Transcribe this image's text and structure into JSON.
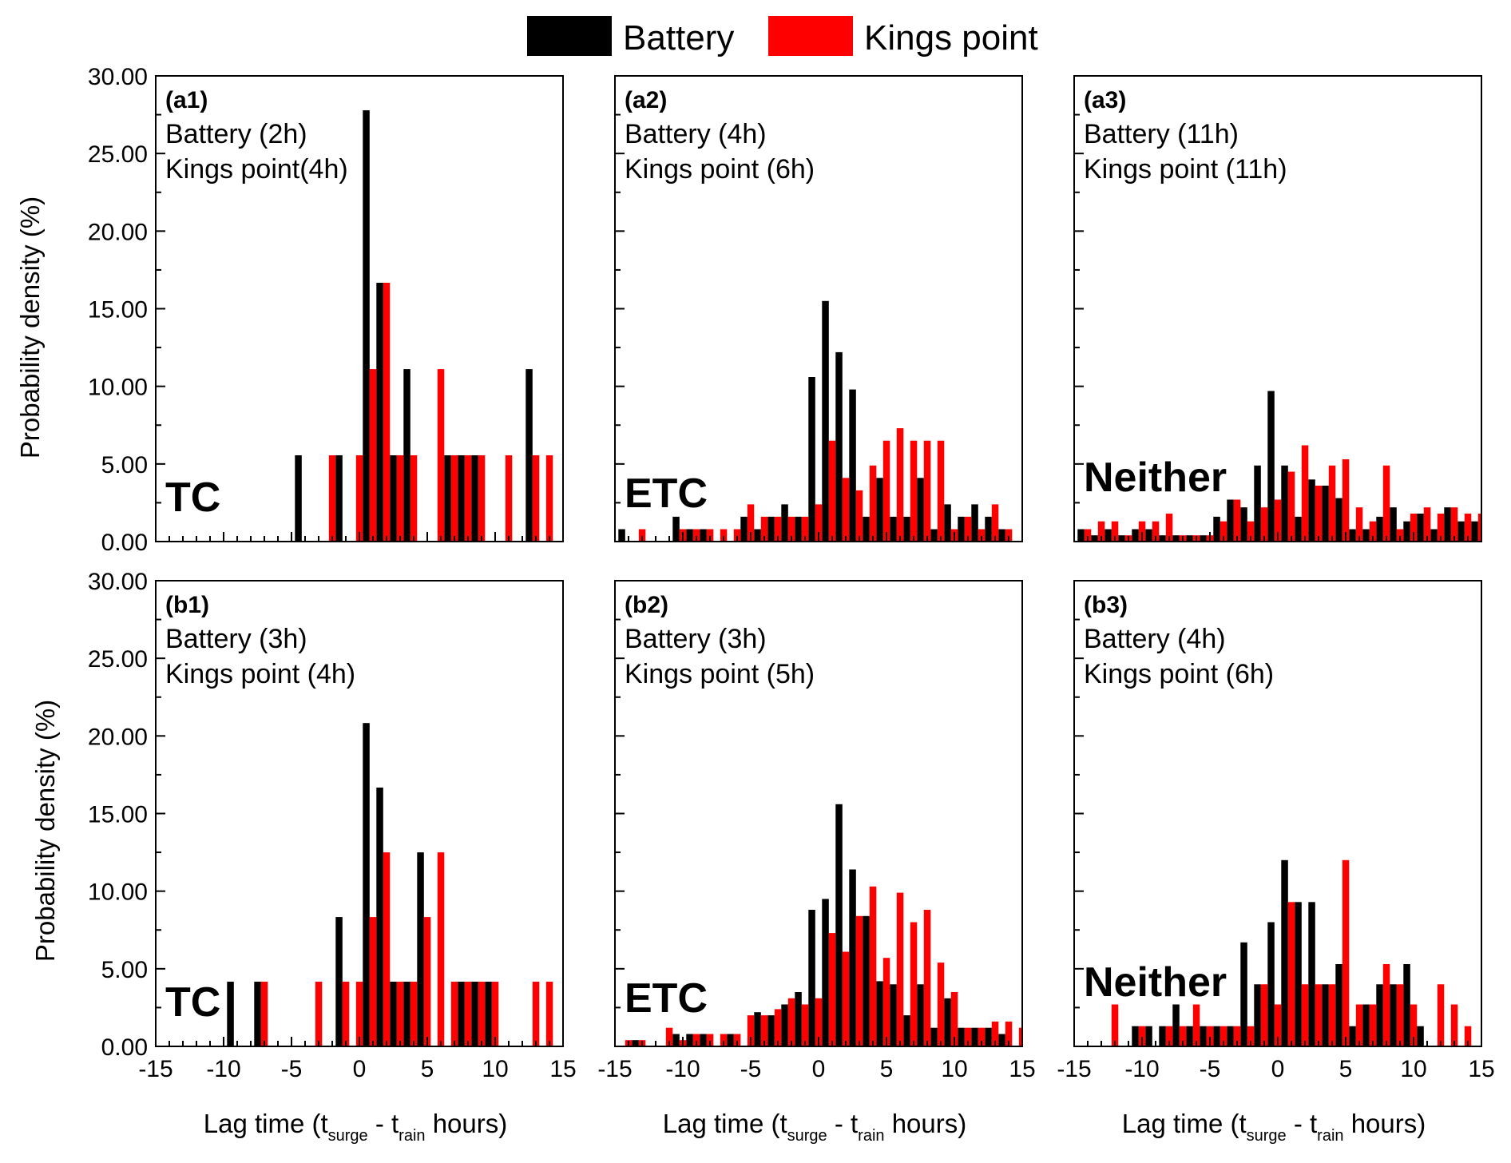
{
  "legend": {
    "items": [
      {
        "label": "Battery",
        "color": "#000000"
      },
      {
        "label": "Kings point",
        "color": "#ff0000"
      }
    ]
  },
  "axes": {
    "xlabel_main": "Lag time (t",
    "xlabel_sub1": "surge",
    "xlabel_mid": " - t",
    "xlabel_sub2": "rain",
    "xlabel_end": " hours)",
    "ylabel": "Probability density (%)",
    "xticks": [
      "-15",
      "-10",
      "-5",
      "0",
      "5",
      "10",
      "15"
    ],
    "yticks": [
      "0.00",
      "5.00",
      "10.00",
      "15.00",
      "20.00",
      "25.00",
      "30.00"
    ]
  },
  "chart_data": [
    {
      "type": "bar",
      "id": "(a1)",
      "line1": "Battery (2h)",
      "line2": "Kings point(4h)",
      "label": "TC",
      "xlim": [
        -15,
        15
      ],
      "ylim": [
        0,
        30
      ],
      "series": [
        {
          "name": "Battery",
          "x": [
            -4.5,
            -1.5,
            0.5,
            1.5,
            2.5,
            3.5,
            6.5,
            7.5,
            8.5,
            12.5
          ],
          "values": [
            5.56,
            5.56,
            27.78,
            16.67,
            5.56,
            11.11,
            5.56,
            5.56,
            5.56,
            11.11
          ]
        },
        {
          "name": "Kings point",
          "x": [
            -2,
            0,
            1,
            2,
            3,
            4,
            6,
            7,
            8,
            9,
            11,
            13,
            14
          ],
          "values": [
            5.56,
            5.56,
            11.11,
            16.67,
            5.56,
            5.56,
            11.11,
            5.56,
            5.56,
            5.56,
            5.56,
            5.56,
            5.56
          ]
        }
      ]
    },
    {
      "type": "bar",
      "id": "(a2)",
      "line1": "Battery (4h)",
      "line2": "Kings point (6h)",
      "label": "ETC",
      "xlim": [
        -15,
        15
      ],
      "ylim": [
        0,
        30
      ],
      "series": [
        {
          "name": "Battery",
          "x": [
            -14.5,
            -10.5,
            -9.5,
            -8.5,
            -5.5,
            -4.5,
            -3.5,
            -2.5,
            -1.5,
            -0.5,
            0.5,
            1.5,
            2.5,
            3.5,
            4.5,
            5.5,
            6.5,
            7.5,
            8.5,
            9.5,
            10.5,
            11.5,
            12.5,
            13.5
          ],
          "values": [
            0.8,
            1.6,
            0.8,
            0.8,
            1.6,
            0.8,
            1.6,
            2.4,
            1.6,
            10.6,
            15.5,
            12.2,
            9.8,
            1.6,
            4.1,
            1.6,
            1.6,
            4.1,
            0.8,
            2.4,
            1.6,
            2.4,
            1.6,
            0.8
          ]
        },
        {
          "name": "Kings point",
          "x": [
            -13,
            -10,
            -9,
            -8,
            -7,
            -6,
            -5,
            -4,
            -3,
            -2,
            -1,
            0,
            1,
            2,
            3,
            4,
            5,
            6,
            7,
            8,
            9,
            10,
            11,
            12,
            13,
            14
          ],
          "values": [
            0.8,
            0.8,
            0.8,
            0.8,
            0.8,
            0.8,
            2.4,
            1.6,
            1.6,
            1.6,
            1.6,
            2.4,
            6.5,
            4.1,
            3.3,
            4.9,
            6.5,
            7.3,
            6.5,
            6.5,
            6.5,
            0.8,
            1.6,
            0.8,
            2.4,
            0.8
          ]
        }
      ]
    },
    {
      "type": "bar",
      "id": "(a3)",
      "line1": "Battery (11h)",
      "line2": "Kings point (11h)",
      "label": "Neither",
      "xlim": [
        -15,
        15
      ],
      "ylim": [
        0,
        30
      ],
      "series": [
        {
          "name": "Battery",
          "x": [
            -14.5,
            -13.5,
            -12.5,
            -11.5,
            -10.5,
            -9.5,
            -8.5,
            -7.5,
            -6.5,
            -5.5,
            -4.5,
            -3.5,
            -2.5,
            -1.5,
            -0.5,
            0.5,
            1.5,
            2.5,
            3.5,
            4.5,
            5.5,
            6.5,
            7.5,
            8.5,
            9.5,
            10.5,
            11.5,
            12.5,
            13.5,
            14.5
          ],
          "values": [
            0.8,
            0.4,
            0.8,
            0.4,
            0.8,
            0.8,
            0.4,
            0.4,
            0.4,
            0.4,
            1.6,
            2.7,
            2.2,
            4.9,
            9.7,
            4.9,
            1.6,
            4.0,
            3.6,
            2.8,
            0.8,
            0.8,
            1.6,
            2.2,
            1.3,
            1.8,
            0.8,
            2.2,
            1.3,
            1.3
          ]
        },
        {
          "name": "Kings point",
          "x": [
            -14,
            -13,
            -12,
            -11,
            -10,
            -9,
            -8,
            -7,
            -6,
            -5,
            -4,
            -3,
            -2,
            -1,
            0,
            1,
            2,
            3,
            4,
            5,
            6,
            7,
            8,
            9,
            10,
            11,
            12,
            13,
            14,
            15
          ],
          "values": [
            0.8,
            1.3,
            1.3,
            0.4,
            1.3,
            1.3,
            1.8,
            0.4,
            0.4,
            0.4,
            1.3,
            2.7,
            1.3,
            2.2,
            2.7,
            4.5,
            6.2,
            3.6,
            4.9,
            5.3,
            2.2,
            1.3,
            4.9,
            0.8,
            1.8,
            2.2,
            1.8,
            2.2,
            1.8,
            1.8
          ]
        }
      ]
    },
    {
      "type": "bar",
      "id": "(b1)",
      "line1": "Battery (3h)",
      "line2": "Kings point (4h)",
      "label": "TC",
      "xlim": [
        -15,
        15
      ],
      "ylim": [
        0,
        30
      ],
      "series": [
        {
          "name": "Battery",
          "x": [
            -9.5,
            -7.5,
            -1.5,
            0.5,
            1.5,
            2.5,
            3.5,
            4.5,
            7.5,
            8.5,
            9.5
          ],
          "values": [
            4.17,
            4.17,
            8.33,
            20.83,
            16.67,
            4.17,
            4.17,
            12.5,
            4.17,
            4.17,
            4.17
          ]
        },
        {
          "name": "Kings point",
          "x": [
            -7,
            -3,
            -1,
            0,
            1,
            2,
            3,
            4,
            5,
            6,
            7,
            8,
            9,
            10,
            13,
            14
          ],
          "values": [
            4.17,
            4.17,
            4.17,
            4.17,
            8.33,
            12.5,
            4.17,
            4.17,
            8.33,
            12.5,
            4.17,
            4.17,
            4.17,
            4.17,
            4.17,
            4.17
          ]
        }
      ]
    },
    {
      "type": "bar",
      "id": "(b2)",
      "line1": "Battery (3h)",
      "line2": "Kings point (5h)",
      "label": "ETC",
      "xlim": [
        -15,
        15
      ],
      "ylim": [
        0,
        30
      ],
      "series": [
        {
          "name": "Battery",
          "x": [
            -13.5,
            -10.5,
            -9.5,
            -8.5,
            -6.5,
            -4.5,
            -3.5,
            -2.5,
            -1.5,
            -0.5,
            0.5,
            1.5,
            2.5,
            3.5,
            4.5,
            5.5,
            6.5,
            7.5,
            8.5,
            9.5,
            10.5,
            11.5,
            12.5,
            13.5
          ],
          "values": [
            0.4,
            0.8,
            0.8,
            0.8,
            0.8,
            2.2,
            2.0,
            2.7,
            3.5,
            8.8,
            9.5,
            15.6,
            11.4,
            8.4,
            4.2,
            4.0,
            2.0,
            4.0,
            1.2,
            3.1,
            1.2,
            1.2,
            1.2,
            0.8
          ]
        },
        {
          "name": "Kings point",
          "x": [
            -14,
            -13,
            -11,
            -10,
            -9,
            -8,
            -7,
            -6,
            -5,
            -4,
            -3,
            -2,
            -1,
            0,
            1,
            2,
            3,
            4,
            5,
            6,
            7,
            8,
            9,
            10,
            11,
            12,
            13,
            14,
            15
          ],
          "values": [
            0.4,
            0.4,
            1.2,
            0.4,
            0.8,
            0.8,
            0.8,
            0.8,
            2.0,
            2.0,
            2.4,
            3.1,
            2.7,
            3.1,
            7.3,
            6.1,
            8.4,
            10.3,
            5.7,
            9.9,
            8.0,
            8.8,
            5.4,
            3.5,
            1.2,
            1.2,
            1.6,
            1.6,
            1.2
          ]
        }
      ]
    },
    {
      "type": "bar",
      "id": "(b3)",
      "line1": "Battery (4h)",
      "line2": "Kings point (6h)",
      "label": "Neither",
      "xlim": [
        -15,
        15
      ],
      "ylim": [
        0,
        30
      ],
      "series": [
        {
          "name": "Battery",
          "x": [
            -10.5,
            -9.5,
            -8.5,
            -7.5,
            -6.5,
            -5.5,
            -4.5,
            -3.5,
            -2.5,
            -1.5,
            -0.5,
            0.5,
            1.5,
            2.5,
            3.5,
            4.5,
            5.5,
            6.5,
            7.5,
            8.5,
            9.5,
            10.5
          ],
          "values": [
            1.3,
            1.3,
            1.3,
            2.7,
            1.3,
            1.3,
            1.3,
            1.3,
            6.7,
            4.0,
            8.0,
            12.0,
            9.3,
            9.3,
            4.0,
            5.3,
            1.3,
            2.7,
            4.0,
            4.0,
            5.3,
            1.3
          ]
        },
        {
          "name": "Kings point",
          "x": [
            -12,
            -10,
            -8,
            -7,
            -6,
            -5,
            -4,
            -3,
            -2,
            -1,
            0,
            1,
            2,
            3,
            4,
            5,
            6,
            7,
            8,
            9,
            10,
            12,
            13,
            14
          ],
          "values": [
            2.7,
            1.3,
            1.3,
            1.3,
            2.7,
            1.3,
            1.3,
            1.3,
            1.3,
            4.0,
            2.7,
            9.3,
            4.0,
            4.0,
            4.0,
            12.0,
            2.7,
            2.7,
            5.3,
            4.0,
            2.7,
            4.0,
            2.7,
            1.3
          ]
        }
      ]
    }
  ]
}
